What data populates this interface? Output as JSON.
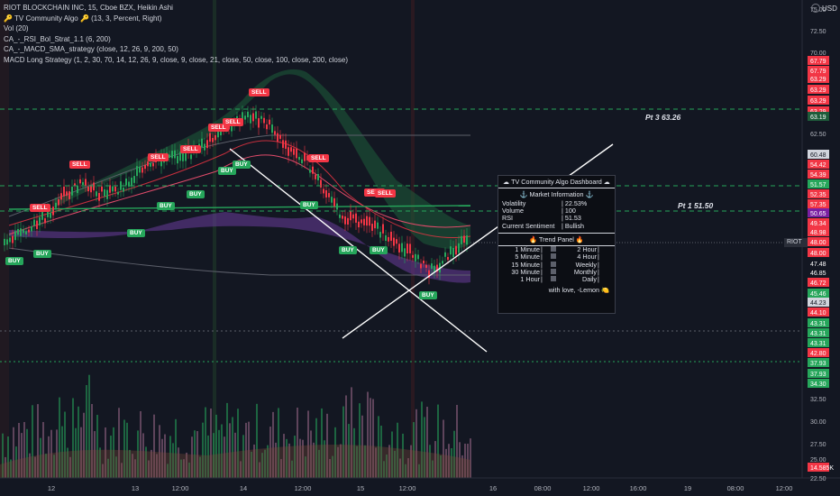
{
  "legend": {
    "symbol": "RIOT BLOCKCHAIN INC, 15, Cboe BZX, Heikin Ashi",
    "lines": [
      "🔑 TV Community Algo 🔑 (13, 3, Percent, Right)",
      "Vol (20)",
      "CA_-_RSI_Bol_Strat_1.1 (6, 200)",
      "CA_-_MACD_SMA_strategy (close, 12, 26, 9, 200, 50)",
      "MACD Long Strategy (1, 2, 30, 70, 14, 12, 26, 9, close, 9, close, 21, close, 50, close, 100, close, 200, close)"
    ]
  },
  "currency": "USD",
  "ticker_tag": "RIOT",
  "annotations": {
    "pt3": "Pt 3 63.26",
    "pt1": "Pt 1 51.50"
  },
  "signals": {
    "sell": [
      "SELL",
      "SELL",
      "SELL",
      "SELL",
      "SELL",
      "SELL",
      "SELL",
      "SELL",
      "SELL",
      "SELL"
    ],
    "buy": [
      "BUY",
      "BUY",
      "BUY",
      "BUY",
      "BUY",
      "BUY",
      "BUY",
      "BUY",
      "BUY",
      "BUY",
      "BUY"
    ]
  },
  "price_axis": [
    {
      "label": "75.00",
      "color": "#b2b5be",
      "bg": ""
    },
    {
      "label": "72.50",
      "color": "#b2b5be",
      "bg": ""
    },
    {
      "label": "70.00",
      "color": "#b2b5be",
      "bg": ""
    },
    {
      "label": "67.79",
      "color": "#fff",
      "bg": "#f23645"
    },
    {
      "label": "67.79",
      "color": "#fff",
      "bg": "#f23645"
    },
    {
      "label": "63.29",
      "color": "#fff",
      "bg": "#f23645"
    },
    {
      "label": "63.29",
      "color": "#fff",
      "bg": "#f23645"
    },
    {
      "label": "63.29",
      "color": "#fff",
      "bg": "#f23645"
    },
    {
      "label": "63.29",
      "color": "#fff",
      "bg": "#f23645"
    },
    {
      "label": "63.19",
      "color": "#fff",
      "bg": "#1e5c3a"
    },
    {
      "label": "62.50",
      "color": "#b2b5be",
      "bg": ""
    },
    {
      "label": "60.48",
      "color": "#131722",
      "bg": "#d1d4dc"
    },
    {
      "label": "54.42",
      "color": "#fff",
      "bg": "#f23645"
    },
    {
      "label": "54.39",
      "color": "#fff",
      "bg": "#f23645"
    },
    {
      "label": "52.35",
      "color": "#fff",
      "bg": "#f23645"
    },
    {
      "label": "51.57",
      "color": "#fff",
      "bg": "#26a65b"
    },
    {
      "label": "57.35",
      "color": "#fff",
      "bg": "#f23645"
    },
    {
      "label": "50.65",
      "color": "#fff",
      "bg": "#7b1fa2"
    },
    {
      "label": "49.34",
      "color": "#fff",
      "bg": "#f23645"
    },
    {
      "label": "48.98",
      "color": "#fff",
      "bg": "#f23645"
    },
    {
      "label": "48.00",
      "color": "#fff",
      "bg": "#f23645"
    },
    {
      "label": "48.00",
      "color": "#fff",
      "bg": "#f23645"
    },
    {
      "label": "47.48",
      "color": "#fff",
      "bg": "#131722"
    },
    {
      "label": "46.85",
      "color": "#fff",
      "bg": "#131722"
    },
    {
      "label": "46.72",
      "color": "#fff",
      "bg": "#f23645"
    },
    {
      "label": "45.46",
      "color": "#fff",
      "bg": "#26a65b"
    },
    {
      "label": "44.23",
      "color": "#131722",
      "bg": "#d1d4dc"
    },
    {
      "label": "44.10",
      "color": "#fff",
      "bg": "#f23645"
    },
    {
      "label": "43.31",
      "color": "#fff",
      "bg": "#26a65b"
    },
    {
      "label": "43.31",
      "color": "#fff",
      "bg": "#26a65b"
    },
    {
      "label": "43.31",
      "color": "#fff",
      "bg": "#26a65b"
    },
    {
      "label": "42.80",
      "color": "#fff",
      "bg": "#f23645"
    },
    {
      "label": "37.93",
      "color": "#fff",
      "bg": "#26a65b"
    },
    {
      "label": "37.93",
      "color": "#fff",
      "bg": "#26a65b"
    },
    {
      "label": "34.30",
      "color": "#fff",
      "bg": "#26a65b"
    },
    {
      "label": "32.50",
      "color": "#b2b5be",
      "bg": ""
    },
    {
      "label": "30.00",
      "color": "#b2b5be",
      "bg": ""
    },
    {
      "label": "27.50",
      "color": "#b2b5be",
      "bg": ""
    },
    {
      "label": "25.00",
      "color": "#b2b5be",
      "bg": ""
    },
    {
      "label": "14.585K",
      "color": "#fff",
      "bg": "#f23645"
    },
    {
      "label": "22.50",
      "color": "#b2b5be",
      "bg": ""
    }
  ],
  "time_axis": [
    "12",
    "13",
    "12:00",
    "14",
    "12:00",
    "15",
    "12:00",
    "16",
    "08:00",
    "12:00",
    "16:00",
    "19",
    "08:00",
    "12:00"
  ],
  "dashboard": {
    "title": "☁ TV Community Algo Dashboard ☁",
    "section1": "⚓ Market Information ⚓",
    "rows": [
      {
        "k": "Volatility",
        "v": "| 22.53%"
      },
      {
        "k": "Volume",
        "v": "| 100"
      },
      {
        "k": "RSI",
        "v": "| 51.53"
      },
      {
        "k": "Current Sentiment",
        "v": "| Bullish"
      }
    ],
    "section2": "🔥 Trend Panel 🔥",
    "trend": [
      [
        "1 Minute",
        "|",
        "2 Hour",
        "|"
      ],
      [
        "5 Minute",
        "|",
        "4 Hour",
        "|"
      ],
      [
        "15 Minute",
        "|",
        "Weekly",
        "|"
      ],
      [
        "30 Minute",
        "|",
        "Monthly",
        "|"
      ],
      [
        "1 Hour",
        "|",
        "Daily",
        "|"
      ]
    ],
    "footer": "with love, -Lemon 🍋"
  }
}
